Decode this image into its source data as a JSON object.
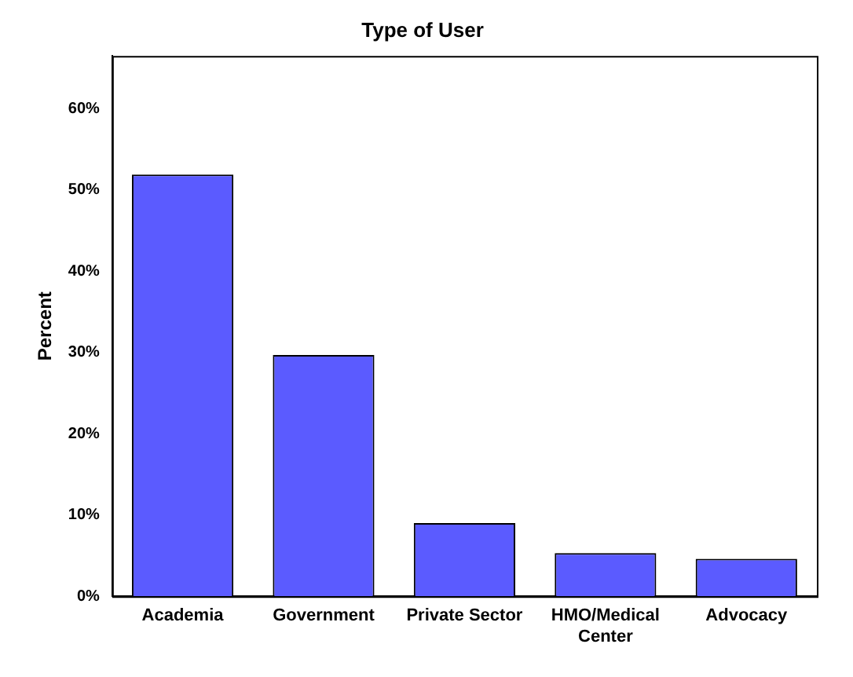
{
  "chart_data": {
    "type": "bar",
    "title": "Type of User",
    "ylabel": "Percent",
    "categories": [
      "Academia",
      "Government",
      "Private Sector",
      "HMO/Medical Center",
      "Advocacy"
    ],
    "values": [
      51.9,
      29.7,
      9.0,
      5.3,
      4.6
    ],
    "color": "#5b5bff",
    "ylim": [
      0,
      66.5
    ],
    "yticks": [
      {
        "value": 0,
        "label": "0%"
      },
      {
        "value": 10,
        "label": "10%"
      },
      {
        "value": 20,
        "label": "20%"
      },
      {
        "value": 30,
        "label": "30%"
      },
      {
        "value": 40,
        "label": "40%"
      },
      {
        "value": 50,
        "label": "50%"
      },
      {
        "value": 60,
        "label": "60%"
      }
    ],
    "grid": false,
    "legend": false
  }
}
